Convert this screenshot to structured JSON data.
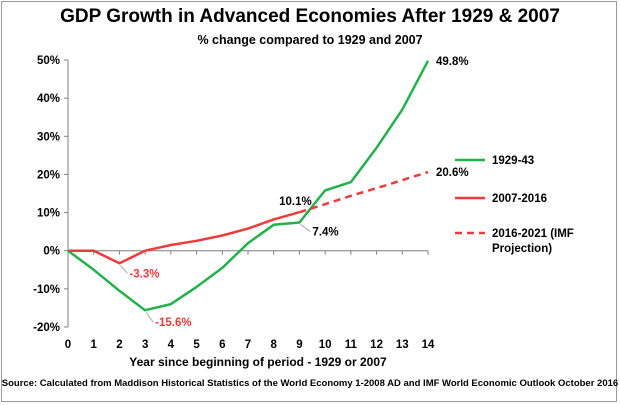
{
  "chart_data": {
    "type": "line",
    "title": "GDP Growth in Advanced Economies After 1929 & 2007",
    "subtitle": "% change compared to 1929 and 2007",
    "xlabel": "Year since beginning of period - 1929 or 2007",
    "ylabel": "",
    "source": "Source: Calculated from Maddison Historical Statistics of the World Economy 1-2008 AD and IMF World Economic Outlook October 2016",
    "x_ticks": [
      "0",
      "1",
      "2",
      "3",
      "4",
      "5",
      "6",
      "7",
      "8",
      "9",
      "10",
      "11",
      "12",
      "13",
      "14"
    ],
    "y_ticks": [
      "50%",
      "40%",
      "30%",
      "20%",
      "10%",
      "0%",
      "-10%",
      "-20%"
    ],
    "xlim": [
      0,
      14
    ],
    "ylim": [
      -20,
      50
    ],
    "grid": false,
    "legend_position": "right",
    "series": [
      {
        "name": "1929-43",
        "color": "#22b14c",
        "style": "solid",
        "x": [
          0,
          1,
          2,
          3,
          4,
          5,
          6,
          7,
          8,
          9,
          10,
          11,
          12,
          13,
          14
        ],
        "y": [
          0,
          -5,
          -10.5,
          -15.6,
          -14,
          -9.5,
          -4.5,
          2,
          6.8,
          7.4,
          15.8,
          18,
          27,
          37,
          49.8
        ]
      },
      {
        "name": "2007-2016",
        "color": "#ee3b3b",
        "style": "solid",
        "x": [
          0,
          1,
          2,
          3,
          4,
          5,
          6,
          7,
          8,
          9
        ],
        "y": [
          0,
          0,
          -3.3,
          0,
          1.5,
          2.6,
          4,
          5.8,
          8.2,
          10.1
        ]
      },
      {
        "name": "2016-2021 (IMF Projection)",
        "legend_lines": [
          "2016-2021 (IMF",
          "Projection)"
        ],
        "color": "#ee3b3b",
        "style": "dashed",
        "x": [
          9,
          10,
          11,
          12,
          13,
          14
        ],
        "y": [
          10.1,
          12.2,
          14.4,
          16.4,
          18.5,
          20.6
        ]
      }
    ],
    "annotations": [
      {
        "text": "49.8%",
        "x": 14,
        "y": 49.8,
        "color": "#000000"
      },
      {
        "text": "20.6%",
        "x": 14,
        "y": 20.6,
        "color": "#000000"
      },
      {
        "text": "10.1%",
        "x": 9,
        "y": 10.1,
        "color": "#000000"
      },
      {
        "text": "7.4%",
        "x": 9,
        "y": 7.4,
        "color": "#000000"
      },
      {
        "text": "-3.3%",
        "x": 2,
        "y": -3.3,
        "color": "#ee3b3b"
      },
      {
        "text": "-15.6%",
        "x": 3,
        "y": -15.6,
        "color": "#ee3b3b"
      }
    ]
  }
}
